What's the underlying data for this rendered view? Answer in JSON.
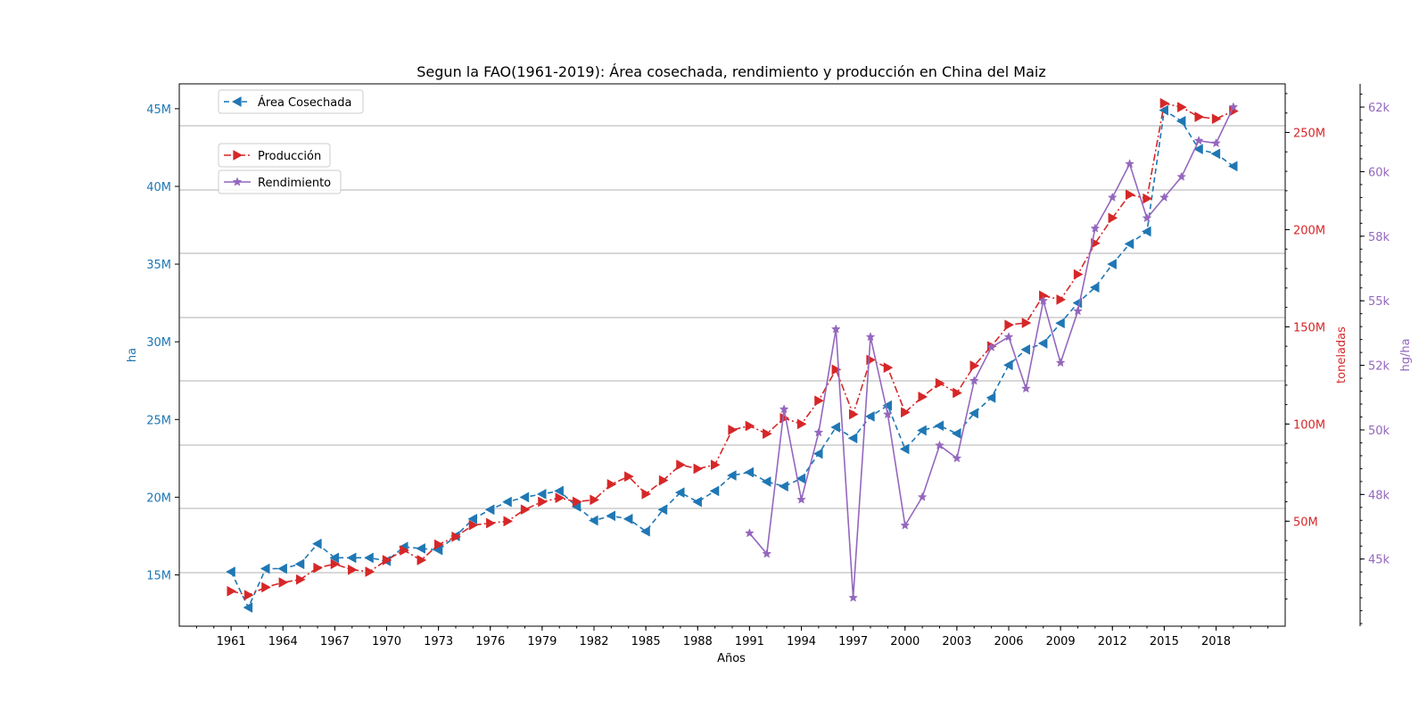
{
  "chart_data": {
    "type": "line",
    "title": "Segun la FAO(1961-2019): Área cosechada, rendimiento y producción en China del Maiz",
    "xlabel": "Años",
    "x": [
      1961,
      1962,
      1963,
      1964,
      1965,
      1966,
      1967,
      1968,
      1969,
      1970,
      1971,
      1972,
      1973,
      1974,
      1975,
      1976,
      1977,
      1978,
      1979,
      1980,
      1981,
      1982,
      1983,
      1984,
      1985,
      1986,
      1987,
      1988,
      1989,
      1990,
      1991,
      1992,
      1993,
      1994,
      1995,
      1996,
      1997,
      1998,
      1999,
      2000,
      2001,
      2002,
      2003,
      2004,
      2005,
      2006,
      2007,
      2008,
      2009,
      2010,
      2011,
      2012,
      2013,
      2014,
      2015,
      2016,
      2017,
      2018,
      2019
    ],
    "x_ticks": [
      "1961",
      "1964",
      "1967",
      "1970",
      "1973",
      "1976",
      "1979",
      "1982",
      "1985",
      "1988",
      "1991",
      "1994",
      "1997",
      "2000",
      "2003",
      "2006",
      "2009",
      "2012",
      "2015",
      "2018"
    ],
    "xlim": [
      1958,
      2022
    ],
    "axes": {
      "left": {
        "label": "ha",
        "color": "#1f77b4",
        "ylim": [
          11700000,
          46600000
        ],
        "ticks": [
          "15M",
          "20M",
          "25M",
          "30M",
          "35M",
          "40M",
          "45M"
        ],
        "tick_values": [
          15000000,
          20000000,
          25000000,
          30000000,
          35000000,
          40000000,
          45000000
        ]
      },
      "right": {
        "label": "toneladas",
        "color": "#d62728",
        "ylim": [
          -4000000,
          275000000
        ],
        "ticks": [
          "50M",
          "100M",
          "150M",
          "200M",
          "250M"
        ],
        "tick_values": [
          50000000,
          100000000,
          150000000,
          200000000,
          250000000
        ]
      },
      "far_right": {
        "label": "hg/ha",
        "color": "#9467bd",
        "ylim": [
          42400,
          63400
        ],
        "ticks": [
          "45k",
          "48k",
          "50k",
          "52k",
          "55k",
          "58k",
          "60k",
          "62k"
        ],
        "tick_values": [
          45000,
          47500,
          50000,
          52500,
          55000,
          57500,
          60000,
          62500
        ]
      }
    },
    "grid": "horizontal",
    "series": [
      {
        "name": "Área Cosechada",
        "axis": "left",
        "color": "#1f77b4",
        "marker": "triangle-left",
        "dash": "6,4",
        "legend_position": "top-left",
        "values": [
          15200000,
          12900000,
          15400000,
          15400000,
          15700000,
          17000000,
          16100000,
          16100000,
          16100000,
          15900000,
          16800000,
          16700000,
          16600000,
          17500000,
          18600000,
          19200000,
          19700000,
          20000000,
          20200000,
          20400000,
          19400000,
          18500000,
          18800000,
          18600000,
          17800000,
          19200000,
          20300000,
          19700000,
          20400000,
          21400000,
          21600000,
          21000000,
          20700000,
          21200000,
          22800000,
          24500000,
          23800000,
          25200000,
          25900000,
          23100000,
          24300000,
          24600000,
          24100000,
          25400000,
          26400000,
          28500000,
          29500000,
          29900000,
          31200000,
          32500000,
          33500000,
          35000000,
          36300000,
          37100000,
          44900000,
          44200000,
          42400000,
          42100000,
          41300000
        ]
      },
      {
        "name": "Producción",
        "axis": "right",
        "color": "#d62728",
        "marker": "triangle-right",
        "dash": "8,3,2,3",
        "legend_position": "upper-left",
        "values": [
          14000000,
          12000000,
          16000000,
          18500000,
          20000000,
          26000000,
          28000000,
          25000000,
          24000000,
          30000000,
          35000000,
          30000000,
          38000000,
          42000000,
          48000000,
          49000000,
          50000000,
          56000000,
          60000000,
          62000000,
          60000000,
          61000000,
          69000000,
          73000000,
          64000000,
          71000000,
          79000000,
          77000000,
          79000000,
          97000000,
          99000000,
          95000000,
          103000000,
          100000000,
          112000000,
          128000000,
          105000000,
          133000000,
          129000000,
          106000000,
          114000000,
          121000000,
          116000000,
          130000000,
          140000000,
          151000000,
          152000000,
          166000000,
          164000000,
          177000000,
          193000000,
          206000000,
          218000000,
          216000000,
          265000000,
          263000000,
          258000000,
          257000000,
          261000000
        ]
      },
      {
        "name": "Rendimiento",
        "axis": "far_right",
        "color": "#9467bd",
        "marker": "star",
        "dash": "",
        "legend_position": "upper-left",
        "values": [
          null,
          null,
          null,
          null,
          null,
          null,
          null,
          null,
          null,
          null,
          null,
          null,
          null,
          null,
          null,
          null,
          null,
          null,
          null,
          null,
          null,
          null,
          null,
          null,
          null,
          null,
          null,
          null,
          null,
          null,
          46000,
          45200,
          50800,
          47300,
          49900,
          53900,
          43500,
          53600,
          50600,
          46300,
          47400,
          49400,
          48900,
          51900,
          53200,
          53600,
          51600,
          55000,
          52600,
          54600,
          57800,
          59000,
          60300,
          58200,
          59000,
          59800,
          61200,
          61100,
          62500
        ]
      }
    ]
  }
}
